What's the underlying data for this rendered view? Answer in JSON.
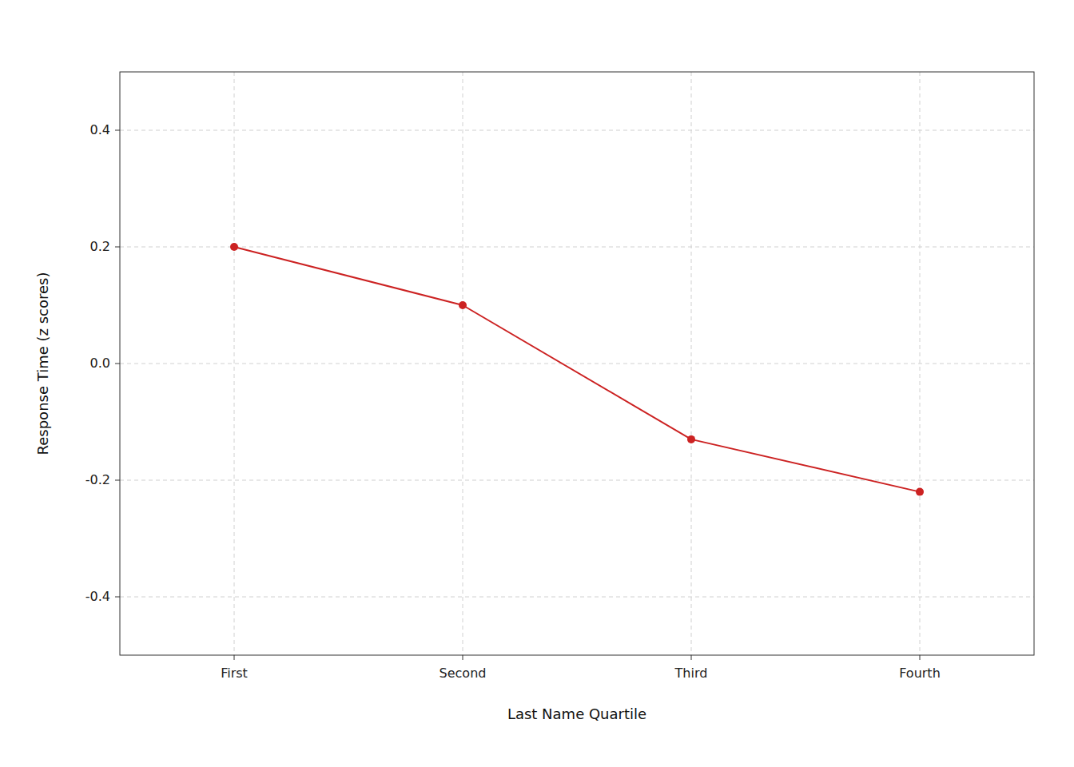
{
  "chart_data": {
    "type": "line",
    "categories": [
      "First",
      "Second",
      "Third",
      "Fourth"
    ],
    "values": [
      0.2,
      0.1,
      -0.13,
      -0.22
    ],
    "color": "#CC2222",
    "marker": "circle",
    "xlabel": "Last Name Quartile",
    "ylabel": "Response Time (z scores)",
    "ylim": [
      -0.5,
      0.5
    ],
    "yticks": [
      -0.4,
      -0.2,
      {
        "value": 0.0,
        "label": "0.0"
      },
      0.2,
      0.4
    ],
    "grid": true
  }
}
